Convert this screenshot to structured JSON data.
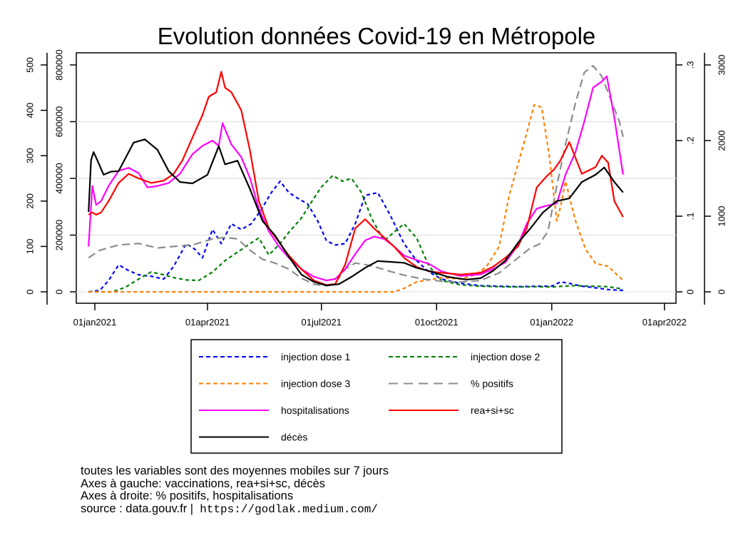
{
  "chart_data": {
    "type": "line",
    "title": "Evolution données Covid-19 en Métropole",
    "x_axis": {
      "ticks": [
        "2021-01-01",
        "2021-04-01",
        "2021-07-01",
        "2021-10-01",
        "2022-01-01",
        "2022-04-01"
      ],
      "tick_labels": [
        "01jan2021",
        "01apr2021",
        "01jul2021",
        "01oct2021",
        "01jan2022",
        "01apr2022"
      ],
      "range": [
        "2020-12-12",
        "2022-04-10"
      ]
    },
    "y_axes": {
      "left_outer": {
        "range": [
          0,
          500
        ],
        "ticks": [
          0,
          100,
          200,
          300,
          400,
          500
        ],
        "tick_labels": [
          "0",
          "100",
          "200",
          "300",
          "400",
          "500"
        ]
      },
      "left_inner": {
        "range": [
          0,
          800000
        ],
        "ticks": [
          0,
          200000,
          400000,
          600000,
          800000
        ],
        "tick_labels": [
          "0",
          "200000",
          "400000",
          "600000",
          "800000"
        ]
      },
      "right_inner": {
        "range": [
          0,
          0.3
        ],
        "ticks": [
          0,
          0.1,
          0.2,
          0.3
        ],
        "tick_labels": [
          "0",
          ".1",
          ".2",
          ".3"
        ]
      },
      "right_outer": {
        "range": [
          0,
          3000
        ],
        "ticks": [
          0,
          1000,
          2000,
          3000
        ],
        "tick_labels": [
          "0",
          "1000",
          "2000",
          "3000"
        ]
      }
    },
    "grid": true,
    "legend_position": "bottom",
    "series": [
      {
        "name": "injection dose 1",
        "axis": "left_inner",
        "color": "#0000ff",
        "style": "dash",
        "x": [
          "2020-12-27",
          "2021-01-05",
          "2021-01-12",
          "2021-01-20",
          "2021-01-28",
          "2021-02-05",
          "2021-02-15",
          "2021-02-25",
          "2021-03-05",
          "2021-03-15",
          "2021-03-22",
          "2021-03-28",
          "2021-04-05",
          "2021-04-12",
          "2021-04-20",
          "2021-04-28",
          "2021-05-06",
          "2021-05-14",
          "2021-05-22",
          "2021-05-29",
          "2021-06-05",
          "2021-06-12",
          "2021-06-20",
          "2021-06-28",
          "2021-07-05",
          "2021-07-12",
          "2021-07-20",
          "2021-07-28",
          "2021-08-05",
          "2021-08-15",
          "2021-08-25",
          "2021-09-05",
          "2021-09-15",
          "2021-09-25",
          "2021-10-05",
          "2021-10-20",
          "2021-11-05",
          "2021-11-20",
          "2021-12-05",
          "2021-12-20",
          "2022-01-01",
          "2022-01-08",
          "2022-01-15",
          "2022-01-25",
          "2022-02-05",
          "2022-02-15",
          "2022-02-27"
        ],
        "y": [
          0,
          5000,
          40000,
          95000,
          75000,
          60000,
          55000,
          45000,
          90000,
          170000,
          150000,
          120000,
          220000,
          170000,
          240000,
          220000,
          240000,
          290000,
          350000,
          390000,
          350000,
          330000,
          310000,
          250000,
          180000,
          165000,
          170000,
          240000,
          340000,
          350000,
          270000,
          170000,
          110000,
          70000,
          45000,
          30000,
          22000,
          20000,
          18000,
          20000,
          20000,
          35000,
          30000,
          20000,
          14000,
          8000,
          5000
        ]
      },
      {
        "name": "injection dose 2",
        "axis": "left_inner",
        "color": "#008000",
        "style": "dash",
        "x": [
          "2020-12-27",
          "2021-01-15",
          "2021-01-25",
          "2021-02-05",
          "2021-02-15",
          "2021-02-25",
          "2021-03-05",
          "2021-03-15",
          "2021-03-25",
          "2021-04-05",
          "2021-04-15",
          "2021-04-25",
          "2021-05-05",
          "2021-05-12",
          "2021-05-20",
          "2021-05-29",
          "2021-06-05",
          "2021-06-15",
          "2021-06-25",
          "2021-07-01",
          "2021-07-10",
          "2021-07-18",
          "2021-07-25",
          "2021-08-02",
          "2021-08-10",
          "2021-08-20",
          "2021-08-28",
          "2021-09-05",
          "2021-09-15",
          "2021-09-25",
          "2021-10-05",
          "2021-10-20",
          "2021-11-05",
          "2021-11-20",
          "2021-12-05",
          "2021-12-20",
          "2022-01-01",
          "2022-01-10",
          "2022-01-20",
          "2022-02-01",
          "2022-02-15",
          "2022-02-27"
        ],
        "y": [
          0,
          0,
          15000,
          45000,
          70000,
          60000,
          50000,
          42000,
          40000,
          70000,
          110000,
          140000,
          170000,
          190000,
          130000,
          170000,
          210000,
          260000,
          330000,
          370000,
          410000,
          390000,
          400000,
          350000,
          260000,
          180000,
          210000,
          240000,
          190000,
          90000,
          40000,
          25000,
          20000,
          18000,
          17000,
          18000,
          17000,
          20000,
          22000,
          20000,
          18000,
          10000
        ]
      },
      {
        "name": "injection dose 3",
        "axis": "left_inner",
        "color": "#ff8000",
        "style": "dash",
        "x": [
          "2020-12-27",
          "2021-08-28",
          "2021-09-05",
          "2021-09-15",
          "2021-10-05",
          "2021-10-20",
          "2021-11-01",
          "2021-11-10",
          "2021-11-20",
          "2021-11-28",
          "2021-12-05",
          "2021-12-12",
          "2021-12-18",
          "2021-12-24",
          "2021-12-30",
          "2022-01-05",
          "2022-01-08",
          "2022-01-12",
          "2022-01-20",
          "2022-01-28",
          "2022-02-05",
          "2022-02-15",
          "2022-02-27"
        ],
        "y": [
          0,
          0,
          12000,
          35000,
          50000,
          45000,
          60000,
          90000,
          160000,
          340000,
          450000,
          560000,
          660000,
          650000,
          480000,
          250000,
          300000,
          390000,
          250000,
          150000,
          100000,
          90000,
          40000
        ]
      },
      {
        "name": "% positifs",
        "axis": "right_inner",
        "color": "#8c8c8c",
        "style": "longdash",
        "x": [
          "2020-12-27",
          "2021-01-05",
          "2021-01-20",
          "2021-02-05",
          "2021-02-20",
          "2021-03-05",
          "2021-03-20",
          "2021-04-05",
          "2021-04-15",
          "2021-04-25",
          "2021-05-05",
          "2021-05-15",
          "2021-05-25",
          "2021-06-05",
          "2021-06-15",
          "2021-06-25",
          "2021-07-05",
          "2021-07-12",
          "2021-07-20",
          "2021-07-28",
          "2021-08-05",
          "2021-08-15",
          "2021-08-25",
          "2021-09-05",
          "2021-09-20",
          "2021-10-05",
          "2021-10-20",
          "2021-11-05",
          "2021-11-20",
          "2021-12-05",
          "2021-12-15",
          "2021-12-22",
          "2021-12-29",
          "2022-01-05",
          "2022-01-12",
          "2022-01-20",
          "2022-01-27",
          "2022-02-03",
          "2022-02-10",
          "2022-02-17",
          "2022-02-24",
          "2022-02-27"
        ],
        "y": [
          0.045,
          0.055,
          0.062,
          0.064,
          0.058,
          0.06,
          0.062,
          0.07,
          0.072,
          0.07,
          0.055,
          0.043,
          0.038,
          0.03,
          0.018,
          0.01,
          0.008,
          0.012,
          0.03,
          0.038,
          0.036,
          0.032,
          0.027,
          0.022,
          0.017,
          0.014,
          0.013,
          0.015,
          0.025,
          0.045,
          0.058,
          0.063,
          0.08,
          0.14,
          0.195,
          0.25,
          0.29,
          0.299,
          0.285,
          0.255,
          0.225,
          0.205
        ]
      },
      {
        "name": "hospitalisations",
        "axis": "right_outer",
        "color": "#ff00ff",
        "style": "solid",
        "x": [
          "2020-12-27",
          "2020-12-30",
          "2021-01-02",
          "2021-01-06",
          "2021-01-12",
          "2021-01-20",
          "2021-01-28",
          "2021-02-05",
          "2021-02-12",
          "2021-02-20",
          "2021-03-01",
          "2021-03-10",
          "2021-03-20",
          "2021-03-28",
          "2021-04-05",
          "2021-04-10",
          "2021-04-13",
          "2021-04-20",
          "2021-04-28",
          "2021-05-05",
          "2021-05-12",
          "2021-05-20",
          "2021-05-28",
          "2021-06-05",
          "2021-06-15",
          "2021-06-25",
          "2021-07-05",
          "2021-07-12",
          "2021-07-20",
          "2021-07-28",
          "2021-08-05",
          "2021-08-12",
          "2021-08-20",
          "2021-08-28",
          "2021-09-05",
          "2021-09-15",
          "2021-09-25",
          "2021-10-05",
          "2021-10-20",
          "2021-11-05",
          "2021-11-15",
          "2021-11-25",
          "2021-12-05",
          "2021-12-12",
          "2021-12-20",
          "2021-12-28",
          "2022-01-05",
          "2022-01-12",
          "2022-01-20",
          "2022-01-27",
          "2022-02-03",
          "2022-02-10",
          "2022-02-14",
          "2022-02-20",
          "2022-02-27"
        ],
        "y": [
          600,
          1400,
          1150,
          1200,
          1400,
          1600,
          1640,
          1570,
          1380,
          1400,
          1440,
          1560,
          1820,
          1930,
          2000,
          1930,
          2230,
          1950,
          1780,
          1500,
          1100,
          800,
          600,
          450,
          300,
          200,
          150,
          170,
          300,
          500,
          680,
          730,
          700,
          600,
          480,
          420,
          370,
          270,
          210,
          230,
          300,
          390,
          620,
          900,
          1100,
          1140,
          1170,
          1550,
          1850,
          2250,
          2700,
          2780,
          2850,
          2300,
          1550
        ]
      },
      {
        "name": "rea+si+sc",
        "axis": "left_outer",
        "color": "#ff0000",
        "style": "solid",
        "x": [
          "2020-12-27",
          "2020-12-30",
          "2021-01-02",
          "2021-01-06",
          "2021-01-12",
          "2021-01-20",
          "2021-01-28",
          "2021-02-05",
          "2021-02-15",
          "2021-02-25",
          "2021-03-05",
          "2021-03-12",
          "2021-03-20",
          "2021-03-28",
          "2021-04-02",
          "2021-04-08",
          "2021-04-12",
          "2021-04-15",
          "2021-04-20",
          "2021-04-28",
          "2021-05-05",
          "2021-05-12",
          "2021-05-20",
          "2021-05-28",
          "2021-06-05",
          "2021-06-15",
          "2021-06-25",
          "2021-07-05",
          "2021-07-12",
          "2021-07-20",
          "2021-07-28",
          "2021-08-05",
          "2021-08-12",
          "2021-08-20",
          "2021-08-28",
          "2021-09-05",
          "2021-09-15",
          "2021-09-25",
          "2021-10-05",
          "2021-10-20",
          "2021-11-05",
          "2021-11-15",
          "2021-11-25",
          "2021-12-05",
          "2021-12-12",
          "2021-12-20",
          "2021-12-28",
          "2022-01-03",
          "2022-01-08",
          "2022-01-15",
          "2022-01-25",
          "2022-02-05",
          "2022-02-10",
          "2022-02-15",
          "2022-02-20",
          "2022-02-27"
        ],
        "y": [
          170,
          175,
          170,
          175,
          200,
          240,
          260,
          250,
          240,
          245,
          260,
          290,
          340,
          390,
          430,
          440,
          485,
          450,
          440,
          400,
          310,
          200,
          140,
          110,
          80,
          50,
          25,
          15,
          17,
          60,
          140,
          160,
          140,
          120,
          100,
          75,
          55,
          45,
          42,
          38,
          42,
          55,
          75,
          100,
          140,
          230,
          255,
          270,
          290,
          330,
          260,
          275,
          300,
          285,
          200,
          165
        ]
      },
      {
        "name": "décès",
        "axis": "left_outer",
        "color": "#000000",
        "style": "solid",
        "x": [
          "2020-12-27",
          "2020-12-29",
          "2020-12-31",
          "2021-01-03",
          "2021-01-08",
          "2021-01-14",
          "2021-01-20",
          "2021-02-01",
          "2021-02-10",
          "2021-02-20",
          "2021-03-01",
          "2021-03-10",
          "2021-03-20",
          "2021-04-01",
          "2021-04-10",
          "2021-04-15",
          "2021-04-25",
          "2021-05-05",
          "2021-05-15",
          "2021-05-25",
          "2021-06-05",
          "2021-06-15",
          "2021-06-25",
          "2021-07-05",
          "2021-07-15",
          "2021-07-25",
          "2021-08-05",
          "2021-08-15",
          "2021-08-25",
          "2021-09-05",
          "2021-09-15",
          "2021-09-25",
          "2021-10-10",
          "2021-10-25",
          "2021-11-05",
          "2021-11-15",
          "2021-11-25",
          "2021-12-05",
          "2021-12-15",
          "2021-12-25",
          "2022-01-05",
          "2022-01-15",
          "2022-01-25",
          "2022-02-05",
          "2022-02-12",
          "2022-02-20",
          "2022-02-27"
        ],
        "y": [
          176,
          290,
          308,
          290,
          258,
          265,
          266,
          329,
          336,
          313,
          266,
          242,
          239,
          258,
          321,
          281,
          289,
          226,
          156,
          124,
          77,
          38,
          22,
          14,
          17,
          33,
          53,
          68,
          66,
          64,
          53,
          46,
          33,
          27,
          30,
          46,
          69,
          108,
          140,
          175,
          200,
          206,
          242,
          258,
          274,
          242,
          219
        ]
      }
    ]
  },
  "legend": {
    "items": [
      {
        "label": "injection dose 1",
        "color": "#0000ff",
        "style": "dash"
      },
      {
        "label": "injection dose 2",
        "color": "#008000",
        "style": "dash"
      },
      {
        "label": "injection dose 3",
        "color": "#ff8000",
        "style": "dash"
      },
      {
        "label": "% positifs",
        "color": "#8c8c8c",
        "style": "longdash"
      },
      {
        "label": "hospitalisations",
        "color": "#ff00ff",
        "style": "solid"
      },
      {
        "label": "rea+si+sc",
        "color": "#ff0000",
        "style": "solid"
      },
      {
        "label": "décès",
        "color": "#000000",
        "style": "solid"
      }
    ]
  },
  "notes": {
    "line1": "toutes les variables sont des moyennes mobiles sur 7 jours",
    "line2": "Axes à gauche: vaccinations, rea+si+sc, décès",
    "line3": "Axes à droite: % positifs, hospitalisations",
    "source_prefix": "source : data.gouv.fr |",
    "source_url": "https://godlak.medium.com/"
  }
}
